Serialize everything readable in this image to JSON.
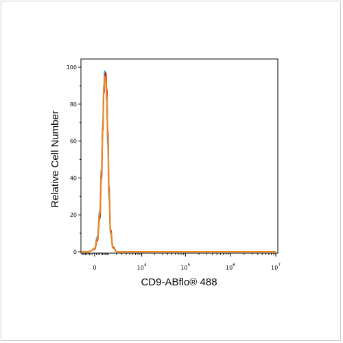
{
  "chart_data": {
    "type": "line",
    "title": "",
    "xlabel": "CD9-ABflo® 488",
    "ylabel": "Relative Cell Number",
    "ylim": [
      0,
      100
    ],
    "y_ticks": [
      {
        "value": 0,
        "label": "0"
      },
      {
        "value": 20,
        "label": "20"
      },
      {
        "value": 40,
        "label": "40"
      },
      {
        "value": 60,
        "label": "60"
      },
      {
        "value": 80,
        "label": "80"
      },
      {
        "value": 100,
        "label": "100"
      }
    ],
    "x_scale": "biexponential",
    "x_ticks": [
      {
        "value": 0,
        "label": "0",
        "exp": ""
      },
      {
        "value": 10000,
        "label": "10",
        "exp": "4"
      },
      {
        "value": 100000,
        "label": "10",
        "exp": "5"
      },
      {
        "value": 1000000,
        "label": "10",
        "exp": "6"
      },
      {
        "value": 10000000,
        "label": "10",
        "exp": "7"
      }
    ],
    "series": [
      {
        "color": "#2ab4d8",
        "x": [
          -1000,
          -400,
          -200,
          0,
          150,
          300,
          420,
          520,
          600,
          680,
          760,
          850,
          960,
          1080,
          1250,
          1550,
          2100,
          3000,
          10000000
        ],
        "y": [
          0,
          0,
          0.5,
          2,
          8,
          22,
          45,
          70,
          90,
          98,
          96,
          82,
          58,
          30,
          10,
          2,
          0,
          0,
          0
        ]
      },
      {
        "color": "#cc1a1a",
        "x": [
          -1000,
          -400,
          -200,
          0,
          150,
          300,
          420,
          520,
          600,
          680,
          760,
          850,
          960,
          1080,
          1250,
          1550,
          2100,
          3000,
          10000000
        ],
        "y": [
          0,
          0,
          0.5,
          1.5,
          6,
          18,
          40,
          66,
          86,
          95,
          97,
          88,
          65,
          35,
          12,
          2.5,
          0,
          0,
          0
        ]
      },
      {
        "color": "#f28a1a",
        "x": [
          -1000,
          -400,
          -200,
          0,
          150,
          300,
          420,
          520,
          600,
          680,
          760,
          850,
          960,
          1080,
          1250,
          1550,
          2100,
          3000,
          10000000
        ],
        "y": [
          0,
          0,
          0.5,
          1.8,
          7,
          20,
          43,
          68,
          88,
          95,
          93,
          84,
          62,
          33,
          11,
          2,
          0,
          0,
          0
        ]
      }
    ]
  }
}
